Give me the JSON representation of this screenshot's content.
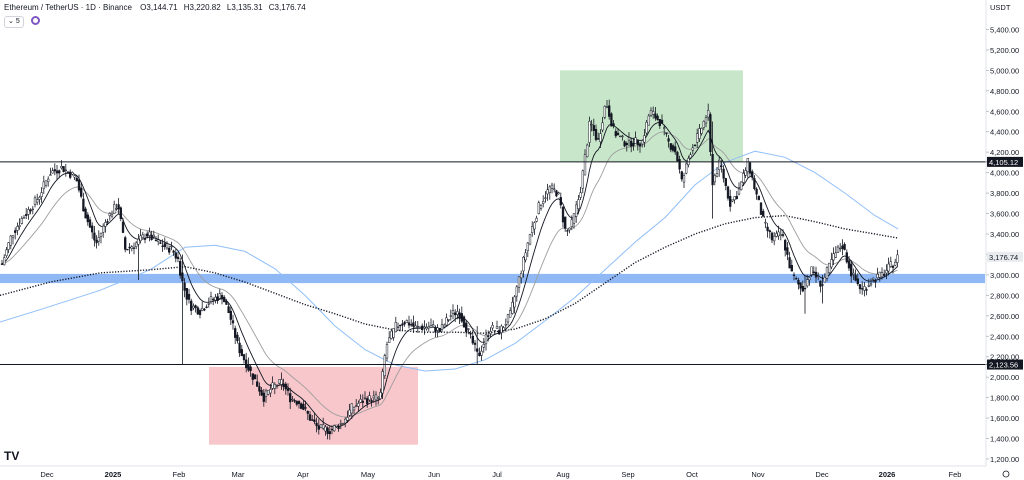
{
  "header": {
    "symbol": "Ethereum / TetherUS · 1D · Binance",
    "o_label": "O",
    "o_value": "3,144.71",
    "h_label": "H",
    "h_value": "3,220.82",
    "l_label": "L",
    "l_value": "3,135.31",
    "c_label": "C",
    "c_value": "3,176.74",
    "indicator_count": "5"
  },
  "quote_currency": "USDT",
  "logo_text": "TV",
  "colors": {
    "up": "#131722",
    "down": "#131722",
    "ema_fast": "#131722",
    "ema_slow": "#9e9e9e",
    "blue_ma": "#90bff9",
    "level_band": "#8fb8f5",
    "green_box": "#c8e6c9",
    "red_box": "#f8c7cb"
  },
  "chart_data": {
    "type": "candlestick",
    "ylim": [
      1200,
      5400
    ],
    "y_ticks": [
      "1,200.00",
      "1,400.00",
      "1,600.00",
      "1,800.00",
      "2,000.00",
      "2,200.00",
      "2,400.00",
      "2,600.00",
      "2,800.00",
      "3,000.00",
      "3,200.00",
      "3,400.00",
      "3,600.00",
      "3,800.00",
      "4,000.00",
      "4,200.00",
      "4,400.00",
      "4,600.00",
      "4,800.00",
      "5,000.00",
      "5,200.00",
      "5,400.00"
    ],
    "x_ticks": [
      "Dec",
      "2025",
      "Feb",
      "Mar",
      "Apr",
      "May",
      "Jun",
      "Jul",
      "Aug",
      "Sep",
      "Oct",
      "Nov",
      "Dec",
      "2026",
      "Feb"
    ],
    "x_ticks_bold": [
      "2025",
      "2026"
    ],
    "levels": [
      {
        "value": 4105.12,
        "label": "4,105.12"
      },
      {
        "value": 2123.56,
        "label": "2,123.56"
      }
    ],
    "last_price": {
      "value": 3176.74,
      "label": "3,176.74"
    },
    "support_band": [
      2920,
      3010
    ],
    "zones": [
      {
        "name": "resistance",
        "from": "Aug",
        "to": "Oct",
        "low": 4105,
        "high": 5000
      },
      {
        "name": "support",
        "from": "Mar",
        "to": "May",
        "low": 1340,
        "high": 2100
      }
    ],
    "close_path": [
      [
        0,
        3050
      ],
      [
        12,
        3400
      ],
      [
        22,
        3550
      ],
      [
        38,
        3750
      ],
      [
        50,
        4000
      ],
      [
        62,
        4050
      ],
      [
        76,
        3950
      ],
      [
        85,
        3600
      ],
      [
        96,
        3300
      ],
      [
        107,
        3550
      ],
      [
        118,
        3700
      ],
      [
        125,
        3250
      ],
      [
        135,
        3300
      ],
      [
        147,
        3400
      ],
      [
        160,
        3300
      ],
      [
        172,
        3250
      ],
      [
        178,
        3150
      ],
      [
        183,
        2900
      ],
      [
        190,
        2700
      ],
      [
        200,
        2650
      ],
      [
        210,
        2750
      ],
      [
        222,
        2800
      ],
      [
        230,
        2600
      ],
      [
        238,
        2300
      ],
      [
        248,
        2100
      ],
      [
        256,
        1950
      ],
      [
        264,
        1800
      ],
      [
        272,
        1900
      ],
      [
        282,
        1950
      ],
      [
        290,
        1800
      ],
      [
        300,
        1750
      ],
      [
        310,
        1600
      ],
      [
        318,
        1500
      ],
      [
        330,
        1480
      ],
      [
        342,
        1550
      ],
      [
        352,
        1700
      ],
      [
        364,
        1780
      ],
      [
        380,
        1800
      ],
      [
        386,
        2300
      ],
      [
        396,
        2500
      ],
      [
        406,
        2550
      ],
      [
        416,
        2480
      ],
      [
        430,
        2500
      ],
      [
        440,
        2450
      ],
      [
        450,
        2600
      ],
      [
        458,
        2650
      ],
      [
        468,
        2450
      ],
      [
        478,
        2200
      ],
      [
        490,
        2480
      ],
      [
        500,
        2450
      ],
      [
        510,
        2600
      ],
      [
        520,
        3000
      ],
      [
        530,
        3400
      ],
      [
        540,
        3700
      ],
      [
        550,
        3850
      ],
      [
        558,
        3800
      ],
      [
        566,
        3400
      ],
      [
        572,
        3500
      ],
      [
        580,
        3800
      ],
      [
        590,
        4500
      ],
      [
        598,
        4300
      ],
      [
        606,
        4700
      ],
      [
        614,
        4400
      ],
      [
        624,
        4300
      ],
      [
        632,
        4300
      ],
      [
        642,
        4300
      ],
      [
        650,
        4600
      ],
      [
        660,
        4500
      ],
      [
        668,
        4300
      ],
      [
        676,
        4200
      ],
      [
        682,
        3900
      ],
      [
        690,
        4200
      ],
      [
        700,
        4400
      ],
      [
        708,
        4600
      ],
      [
        712,
        3900
      ],
      [
        720,
        4100
      ],
      [
        730,
        3700
      ],
      [
        738,
        3800
      ],
      [
        748,
        4100
      ],
      [
        756,
        3800
      ],
      [
        764,
        3500
      ],
      [
        772,
        3350
      ],
      [
        782,
        3400
      ],
      [
        792,
        3000
      ],
      [
        802,
        2850
      ],
      [
        812,
        3050
      ],
      [
        822,
        2900
      ],
      [
        832,
        3150
      ],
      [
        842,
        3300
      ],
      [
        852,
        3000
      ],
      [
        862,
        2850
      ],
      [
        872,
        2950
      ],
      [
        882,
        3000
      ],
      [
        892,
        3100
      ],
      [
        898,
        3176
      ]
    ],
    "blue_ma_path": [
      [
        0,
        2540
      ],
      [
        40,
        2660
      ],
      [
        100,
        2850
      ],
      [
        150,
        3050
      ],
      [
        185,
        3270
      ],
      [
        215,
        3290
      ],
      [
        245,
        3230
      ],
      [
        275,
        3060
      ],
      [
        305,
        2800
      ],
      [
        335,
        2500
      ],
      [
        365,
        2270
      ],
      [
        395,
        2120
      ],
      [
        425,
        2060
      ],
      [
        455,
        2080
      ],
      [
        485,
        2170
      ],
      [
        515,
        2330
      ],
      [
        545,
        2550
      ],
      [
        575,
        2780
      ],
      [
        605,
        3050
      ],
      [
        635,
        3320
      ],
      [
        665,
        3560
      ],
      [
        695,
        3880
      ],
      [
        725,
        4100
      ],
      [
        755,
        4210
      ],
      [
        785,
        4150
      ],
      [
        815,
        4000
      ],
      [
        845,
        3800
      ],
      [
        875,
        3580
      ],
      [
        898,
        3450
      ]
    ],
    "dotted_ma_path": [
      [
        0,
        2800
      ],
      [
        50,
        2930
      ],
      [
        100,
        3020
      ],
      [
        150,
        3050
      ],
      [
        185,
        3080
      ],
      [
        215,
        3020
      ],
      [
        245,
        2930
      ],
      [
        275,
        2820
      ],
      [
        305,
        2710
      ],
      [
        335,
        2620
      ],
      [
        365,
        2520
      ],
      [
        395,
        2460
      ],
      [
        425,
        2440
      ],
      [
        455,
        2440
      ],
      [
        485,
        2430
      ],
      [
        515,
        2470
      ],
      [
        545,
        2570
      ],
      [
        575,
        2720
      ],
      [
        605,
        2920
      ],
      [
        635,
        3120
      ],
      [
        665,
        3270
      ],
      [
        695,
        3400
      ],
      [
        725,
        3500
      ],
      [
        755,
        3560
      ],
      [
        785,
        3580
      ],
      [
        815,
        3520
      ],
      [
        845,
        3450
      ],
      [
        875,
        3400
      ],
      [
        898,
        3360
      ]
    ]
  }
}
